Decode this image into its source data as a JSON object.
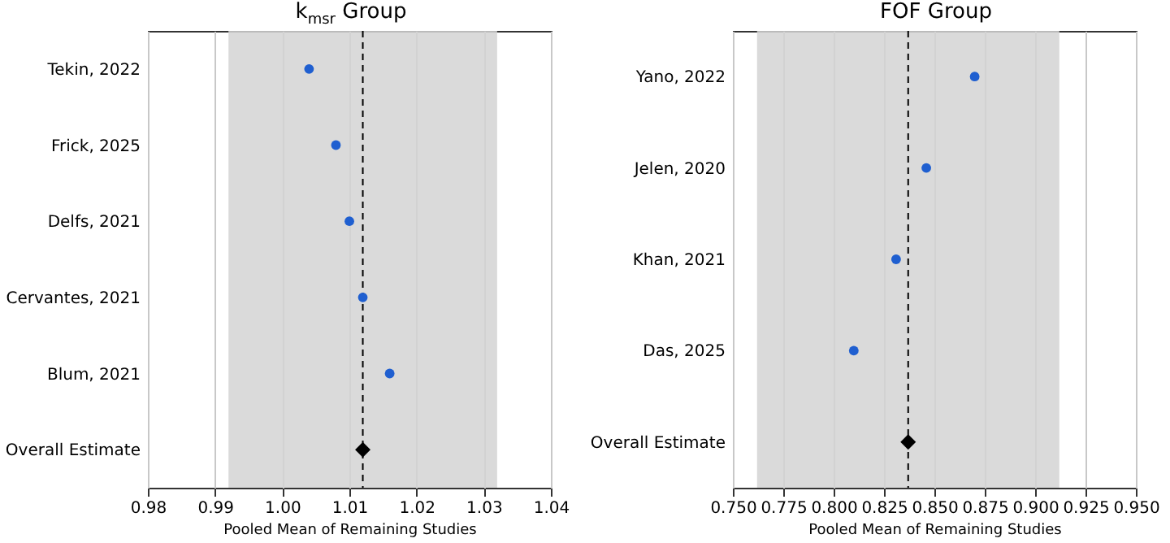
{
  "chart_data": [
    {
      "type": "scatter",
      "orientation": "horizontal",
      "title": "k$_{msr}$ Group",
      "xlabel": "Pooled Mean of Remaining Studies",
      "categories": [
        "Tekin, 2022",
        "Frick, 2025",
        "Delfs, 2021",
        "Cervantes, 2021",
        "Blum, 2021",
        "Overall Estimate"
      ],
      "series": [
        {
          "color": "#1f5fd0",
          "marker": "circle",
          "values": [
            1.004,
            1.008,
            1.01,
            1.012,
            1.016,
            null
          ]
        },
        {
          "color": "#000000",
          "marker": "diamond",
          "values": [
            null,
            null,
            null,
            null,
            null,
            1.012
          ]
        }
      ],
      "xlim": [
        0.98,
        1.04
      ],
      "xticks": [
        {
          "value": 0.98,
          "label": "0.98"
        },
        {
          "value": 0.99,
          "label": "0.99"
        },
        {
          "value": 1.0,
          "label": "1.00"
        },
        {
          "value": 1.01,
          "label": "1.01"
        },
        {
          "value": 1.02,
          "label": "1.02"
        },
        {
          "value": 1.03,
          "label": "1.03"
        },
        {
          "value": 1.04,
          "label": "1.04"
        }
      ],
      "ref_lines": [
        {
          "axis": "x",
          "value": 1.012,
          "color": "#000000",
          "line_style": "dashed"
        }
      ],
      "bands": [
        {
          "axis": "x",
          "from": 0.992,
          "to": 1.032,
          "color": "#d3d3d3"
        }
      ],
      "grid": "x"
    },
    {
      "type": "scatter",
      "orientation": "horizontal",
      "title": "FOF Group",
      "xlabel": "Pooled Mean of Remaining Studies",
      "categories": [
        "Yano, 2022",
        "Jelen, 2020",
        "Khan, 2021",
        "Das, 2025",
        "Overall Estimate"
      ],
      "series": [
        {
          "color": "#1f5fd0",
          "marker": "circle",
          "values": [
            0.87,
            0.846,
            0.831,
            0.81,
            null
          ]
        },
        {
          "color": "#000000",
          "marker": "diamond",
          "values": [
            null,
            null,
            null,
            null,
            0.837
          ]
        }
      ],
      "xlim": [
        0.75,
        0.95
      ],
      "xticks": [
        {
          "value": 0.75,
          "label": "0.750"
        },
        {
          "value": 0.775,
          "label": "0.775"
        },
        {
          "value": 0.8,
          "label": "0.800"
        },
        {
          "value": 0.825,
          "label": "0.825"
        },
        {
          "value": 0.85,
          "label": "0.850"
        },
        {
          "value": 0.875,
          "label": "0.875"
        },
        {
          "value": 0.9,
          "label": "0.900"
        },
        {
          "value": 0.925,
          "label": "0.925"
        },
        {
          "value": 0.95,
          "label": "0.950"
        }
      ],
      "ref_lines": [
        {
          "axis": "x",
          "value": 0.837,
          "color": "#000000",
          "line_style": "dashed"
        }
      ],
      "bands": [
        {
          "axis": "x",
          "from": 0.762,
          "to": 0.912,
          "color": "#d3d3d3"
        }
      ],
      "grid": "x"
    }
  ]
}
